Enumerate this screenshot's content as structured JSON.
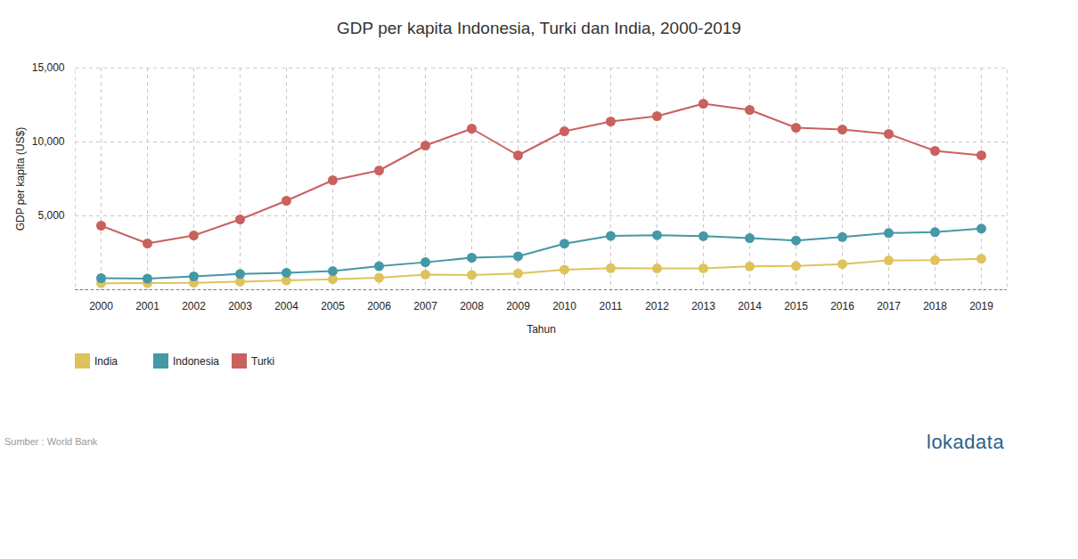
{
  "chart_data": {
    "type": "line",
    "title": "GDP per kapita Indonesia, Turki dan India, 2000-2019",
    "x_label": "Tahun",
    "y_label": "GDP per kapita (US$)",
    "source": "Sumber : World Bank",
    "logo": "lokadata",
    "categories": [
      "2000",
      "2001",
      "2002",
      "2003",
      "2004",
      "2005",
      "2006",
      "2007",
      "2008",
      "2009",
      "2010",
      "2011",
      "2012",
      "2013",
      "2014",
      "2015",
      "2016",
      "2017",
      "2018",
      "2019"
    ],
    "series": [
      {
        "name": "India",
        "color": "#dec35c",
        "values": [
          443,
          452,
          471,
          546,
          628,
          715,
          807,
          1028,
          999,
          1102,
          1358,
          1458,
          1444,
          1450,
          1574,
          1606,
          1733,
          1981,
          1997,
          2100
        ]
      },
      {
        "name": "Indonesia",
        "color": "#4598a6",
        "values": [
          783,
          748,
          903,
          1065,
          1150,
          1260,
          1590,
          1860,
          2168,
          2262,
          3122,
          3643,
          3694,
          3623,
          3492,
          3332,
          3563,
          3837,
          3894,
          4135
        ]
      },
      {
        "name": "Turki",
        "color": "#c9615f",
        "values": [
          4337,
          3133,
          3675,
          4759,
          6024,
          7410,
          8072,
          9759,
          10904,
          9096,
          10723,
          11386,
          11747,
          12590,
          12169,
          10964,
          10844,
          10542,
          9398,
          9096
        ]
      }
    ],
    "ylim": [
      0,
      15000
    ],
    "yticks": [
      {
        "value": 5000,
        "label": "5,000"
      },
      {
        "value": 10000,
        "label": "10,000"
      },
      {
        "value": 15000,
        "label": "15,000"
      }
    ],
    "grid": true,
    "marker": "circle",
    "legend": "bottom-left"
  }
}
